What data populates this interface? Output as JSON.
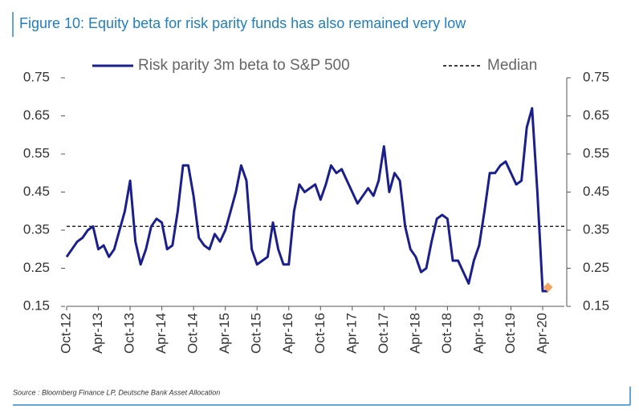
{
  "chart_data": {
    "type": "line",
    "title": "Figure 10: Equity beta for risk parity funds has also remained very low",
    "source": "Source : Bloomberg Finance LP, Deutsche Bank Asset Allocation",
    "x": [
      "Oct-12",
      null,
      null,
      null,
      null,
      null,
      "Apr-13",
      null,
      null,
      null,
      null,
      null,
      "Oct-13",
      null,
      null,
      null,
      null,
      null,
      "Apr-14",
      null,
      null,
      null,
      null,
      null,
      "Oct-14",
      null,
      null,
      null,
      null,
      null,
      "Apr-15",
      null,
      null,
      null,
      null,
      null,
      "Oct-15",
      null,
      null,
      null,
      null,
      null,
      "Apr-16",
      null,
      null,
      null,
      null,
      null,
      "Oct-16",
      null,
      null,
      null,
      null,
      null,
      "Apr-17",
      null,
      null,
      null,
      null,
      null,
      "Oct-17",
      null,
      null,
      null,
      null,
      null,
      "Apr-18",
      null,
      null,
      null,
      null,
      null,
      "Oct-18",
      null,
      null,
      null,
      null,
      null,
      "Apr-19",
      null,
      null,
      null,
      null,
      null,
      "Oct-19",
      null,
      null,
      null,
      null,
      null,
      "Apr-20",
      null
    ],
    "series": [
      {
        "name": "Risk parity 3m beta to S&P 500",
        "color": "#1a1f8c",
        "values": [
          0.28,
          0.3,
          0.32,
          0.33,
          0.35,
          0.36,
          0.3,
          0.31,
          0.28,
          0.3,
          0.35,
          0.4,
          0.48,
          0.32,
          0.26,
          0.3,
          0.36,
          0.38,
          0.37,
          0.3,
          0.31,
          0.4,
          0.52,
          0.52,
          0.44,
          0.33,
          0.31,
          0.3,
          0.34,
          0.32,
          0.35,
          0.4,
          0.45,
          0.52,
          0.48,
          0.3,
          0.26,
          0.27,
          0.28,
          0.37,
          0.3,
          0.26,
          0.26,
          0.4,
          0.47,
          0.45,
          0.46,
          0.47,
          0.43,
          0.47,
          0.52,
          0.5,
          0.51,
          0.48,
          0.45,
          0.42,
          0.44,
          0.46,
          0.44,
          0.48,
          0.57,
          0.45,
          0.5,
          0.48,
          0.36,
          0.3,
          0.28,
          0.24,
          0.25,
          0.32,
          0.38,
          0.39,
          0.38,
          0.27,
          0.27,
          0.24,
          0.21,
          0.27,
          0.31,
          0.4,
          0.5,
          0.5,
          0.52,
          0.53,
          0.5,
          0.47,
          0.48,
          0.62,
          0.67,
          0.45,
          0.19,
          0.19
        ]
      },
      {
        "color": "#f4a460",
        "marker": "diamond",
        "values": [
          null,
          null,
          null,
          null,
          null,
          null,
          null,
          null,
          null,
          null,
          null,
          null,
          null,
          null,
          null,
          null,
          null,
          null,
          null,
          null,
          null,
          null,
          null,
          null,
          null,
          null,
          null,
          null,
          null,
          null,
          null,
          null,
          null,
          null,
          null,
          null,
          null,
          null,
          null,
          null,
          null,
          null,
          null,
          null,
          null,
          null,
          null,
          null,
          null,
          null,
          null,
          null,
          null,
          null,
          null,
          null,
          null,
          null,
          null,
          null,
          null,
          null,
          null,
          null,
          null,
          null,
          null,
          null,
          null,
          null,
          null,
          null,
          null,
          null,
          null,
          null,
          null,
          null,
          null,
          null,
          null,
          null,
          null,
          null,
          null,
          null,
          null,
          null,
          null,
          null,
          null,
          0.2
        ]
      }
    ],
    "reference_lines": [
      {
        "name": "Median",
        "value": 0.36,
        "style": "dashed",
        "color": "#000000"
      }
    ],
    "ylim": [
      0.15,
      0.75
    ],
    "yticks": [
      0.15,
      0.25,
      0.35,
      0.45,
      0.55,
      0.65,
      0.75
    ],
    "y2lim": [
      0.15,
      0.75
    ],
    "y2ticks": [
      0.15,
      0.25,
      0.35,
      0.45,
      0.55,
      0.65,
      0.75
    ],
    "grid": false
  }
}
